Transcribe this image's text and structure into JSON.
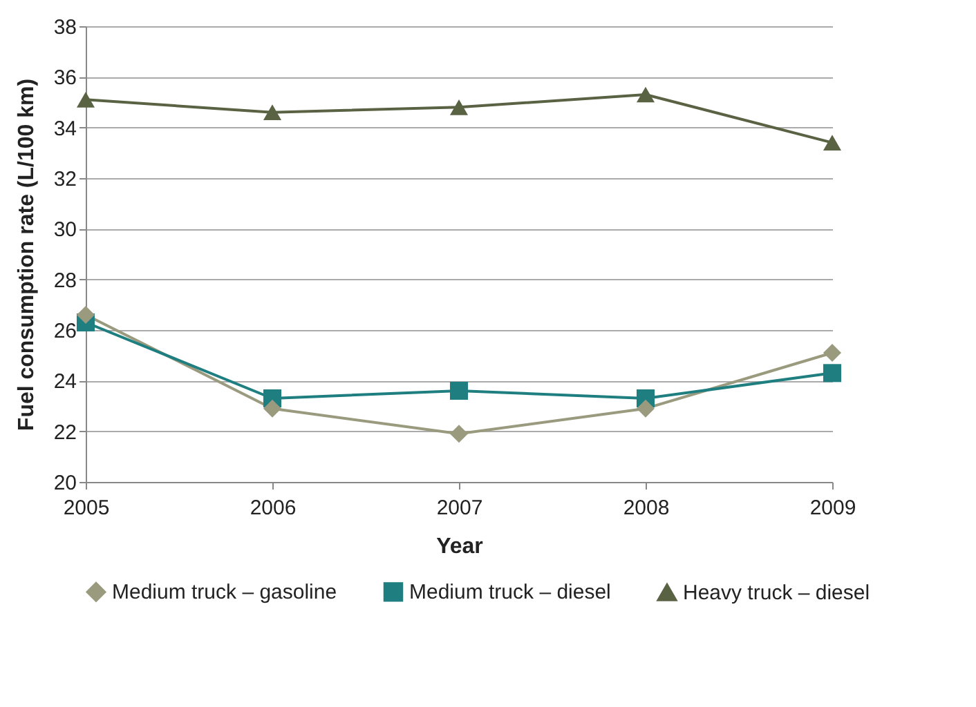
{
  "chart_data": {
    "type": "line",
    "xlabel": "Year",
    "ylabel": "Fuel consumption rate (L/100 km)",
    "x": [
      2005,
      2006,
      2007,
      2008,
      2009
    ],
    "xlim": [
      2005,
      2009
    ],
    "xticks": [
      2005,
      2006,
      2007,
      2008,
      2009
    ],
    "ylim": [
      20,
      38
    ],
    "yticks": [
      20,
      22,
      24,
      26,
      28,
      30,
      32,
      34,
      36,
      38
    ],
    "grid": "y",
    "legend": "bottom",
    "series": [
      {
        "name": "Medium truck – gasoline",
        "color": "#9a9a7e",
        "marker": "diamond",
        "values": [
          26.6,
          22.9,
          21.9,
          22.9,
          25.1
        ]
      },
      {
        "name": "Medium truck – diesel",
        "color": "#1f7f80",
        "marker": "square",
        "values": [
          26.3,
          23.3,
          23.6,
          23.3,
          24.3
        ]
      },
      {
        "name": "Heavy truck – diesel",
        "color": "#5a6244",
        "marker": "triangle",
        "values": [
          35.1,
          34.6,
          34.8,
          35.3,
          33.4
        ]
      }
    ]
  }
}
